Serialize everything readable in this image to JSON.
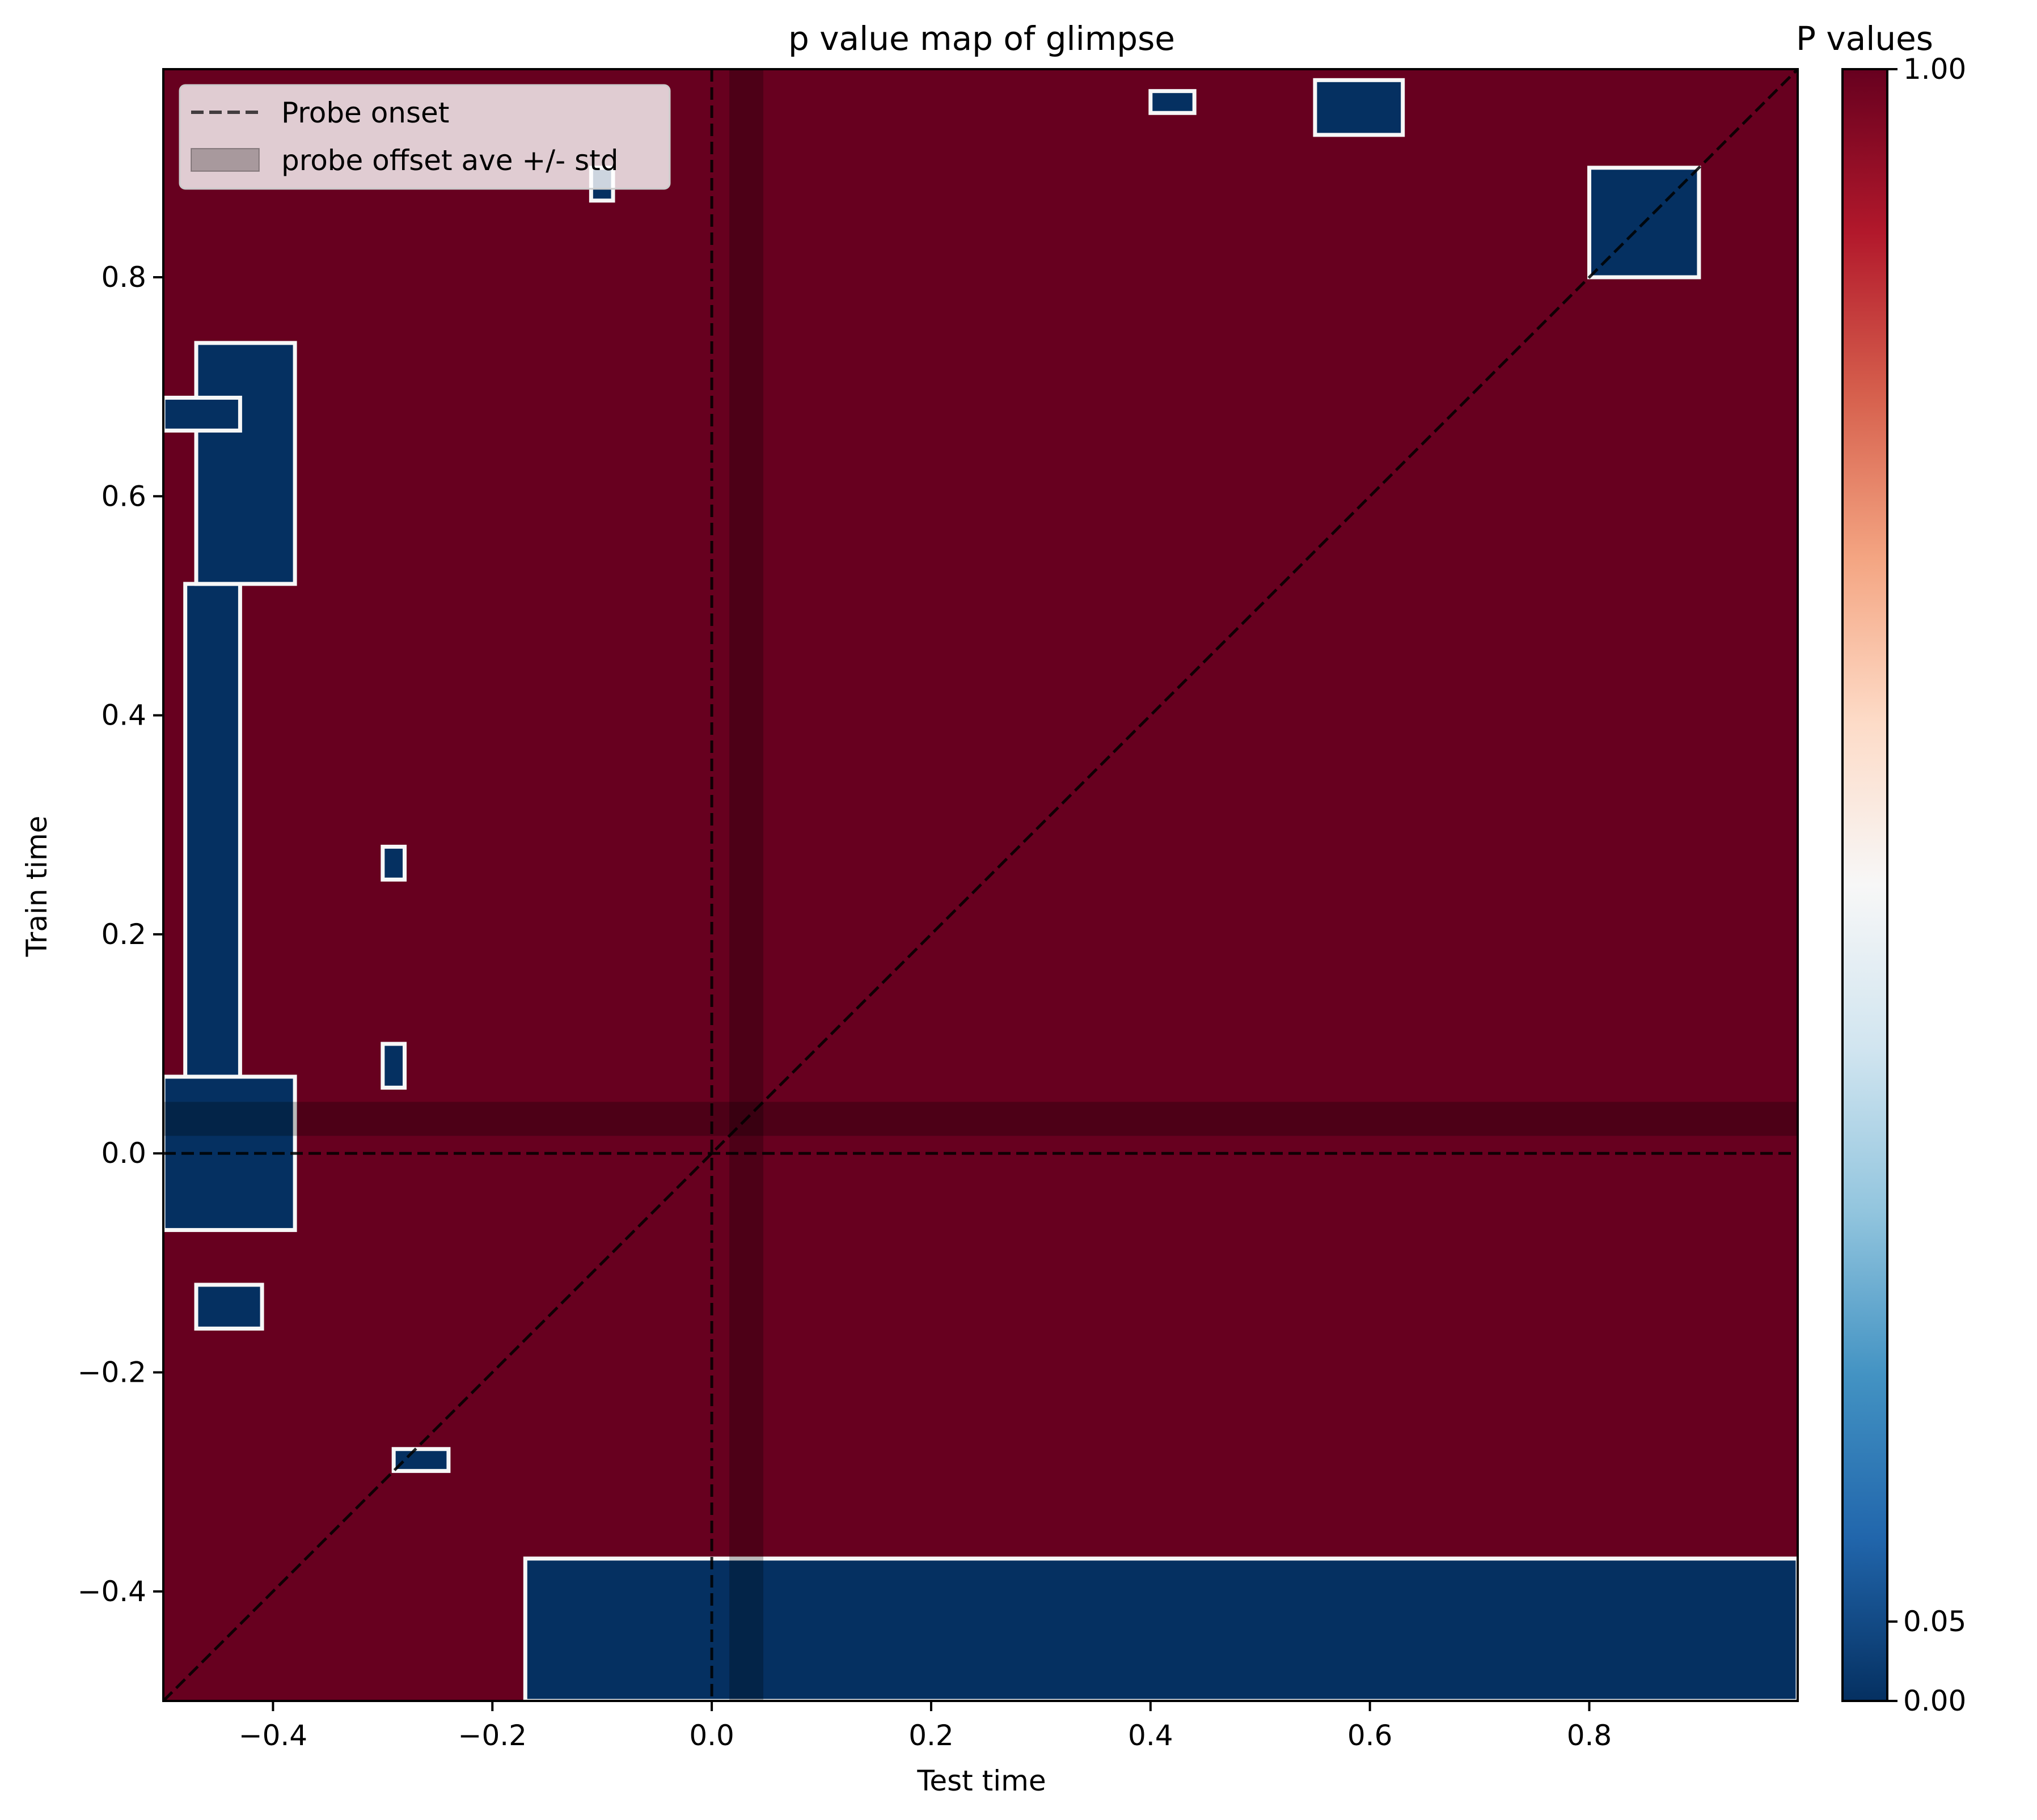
{
  "chart_data": {
    "type": "heatmap",
    "title": "p value map of glimpse",
    "xlabel": "Test time",
    "ylabel": "Train time",
    "xlim": [
      -0.5,
      0.99
    ],
    "ylim": [
      -0.5,
      0.99
    ],
    "xticks": [
      -0.4,
      -0.2,
      0.0,
      0.2,
      0.4,
      0.6,
      0.8
    ],
    "xtick_labels": [
      "−0.4",
      "−0.2",
      "0.0",
      "0.2",
      "0.4",
      "0.6",
      "0.8"
    ],
    "yticks": [
      -0.4,
      -0.2,
      0.0,
      0.2,
      0.4,
      0.6,
      0.8
    ],
    "ytick_labels": [
      "−0.4",
      "−0.2",
      "0.0",
      "0.2",
      "0.4",
      "0.6",
      "0.8"
    ],
    "colorbar": {
      "title": "P values",
      "colormap": "RdBu_r",
      "ticks": [
        0.0,
        0.05,
        1.0
      ],
      "tick_labels": [
        "0.00",
        "0.05",
        "1.00"
      ],
      "colors": [
        "#053061",
        "#2166ac",
        "#4393c3",
        "#92c5de",
        "#d1e5f0",
        "#f7f7f7",
        "#fddbc7",
        "#f4a582",
        "#d6604d",
        "#b2182b",
        "#67001f"
      ]
    },
    "background_p_value": 1.0,
    "background_color": "#67001f",
    "significant_color": "#053061",
    "diagonal": true,
    "probe_onset": 0.0,
    "probe_offset_band": [
      0.016,
      0.047
    ],
    "legend": {
      "placement": "upper left",
      "entries": [
        "Probe onset",
        "probe offset ave +/- std"
      ]
    },
    "significant_regions_p_lt_0.05": [
      {
        "test_time": [
          -0.5,
          -0.38
        ],
        "train_time": [
          -0.07,
          0.07
        ]
      },
      {
        "test_time": [
          -0.48,
          -0.43
        ],
        "train_time": [
          0.07,
          0.52
        ]
      },
      {
        "test_time": [
          -0.47,
          -0.38
        ],
        "train_time": [
          0.52,
          0.74
        ]
      },
      {
        "test_time": [
          -0.5,
          -0.43
        ],
        "train_time": [
          0.66,
          0.69
        ]
      },
      {
        "test_time": [
          -0.47,
          -0.41
        ],
        "train_time": [
          -0.16,
          -0.12
        ]
      },
      {
        "test_time": [
          -0.3,
          -0.28
        ],
        "train_time": [
          0.06,
          0.1
        ]
      },
      {
        "test_time": [
          -0.3,
          -0.28
        ],
        "train_time": [
          0.25,
          0.28
        ]
      },
      {
        "test_time": [
          -0.29,
          -0.24
        ],
        "train_time": [
          -0.29,
          -0.27
        ]
      },
      {
        "test_time": [
          -0.11,
          -0.09
        ],
        "train_time": [
          0.87,
          0.9
        ]
      },
      {
        "test_time": [
          0.4,
          0.44
        ],
        "train_time": [
          0.95,
          0.97
        ]
      },
      {
        "test_time": [
          0.55,
          0.63
        ],
        "train_time": [
          0.93,
          0.98
        ]
      },
      {
        "test_time": [
          0.8,
          0.9
        ],
        "train_time": [
          0.8,
          0.9
        ]
      },
      {
        "test_time": [
          -0.17,
          0.99
        ],
        "train_time": [
          -0.5,
          -0.37
        ]
      }
    ]
  }
}
